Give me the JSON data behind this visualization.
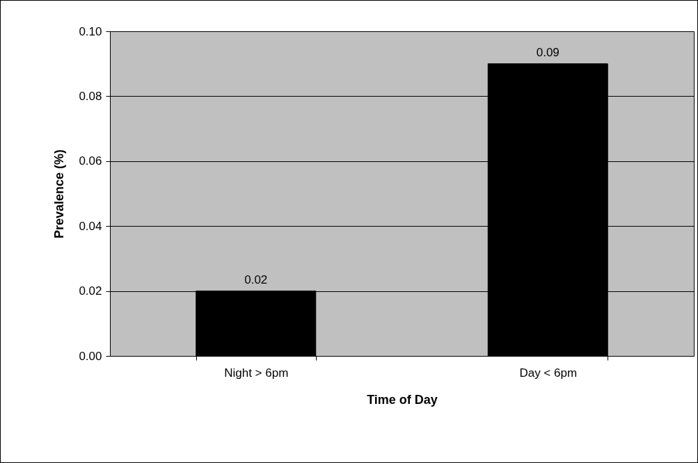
{
  "chart_data": {
    "type": "bar",
    "xlabel": "Time of Day",
    "ylabel": "Prevalence (%)",
    "categories": [
      "Night > 6pm",
      "Day < 6pm"
    ],
    "values": [
      0.02,
      0.09
    ],
    "color": "#000000",
    "ylim": [
      0,
      0.1
    ],
    "yticks": [
      {
        "value": 0,
        "label": "0.00"
      },
      {
        "value": 0.02,
        "label": "0.02"
      },
      {
        "value": 0.04,
        "label": "0.04"
      },
      {
        "value": 0.06,
        "label": "0.06"
      },
      {
        "value": 0.08,
        "label": "0.08"
      },
      {
        "value": 0.1,
        "label": "0.10"
      }
    ],
    "grid": "y",
    "data_labels": true
  }
}
